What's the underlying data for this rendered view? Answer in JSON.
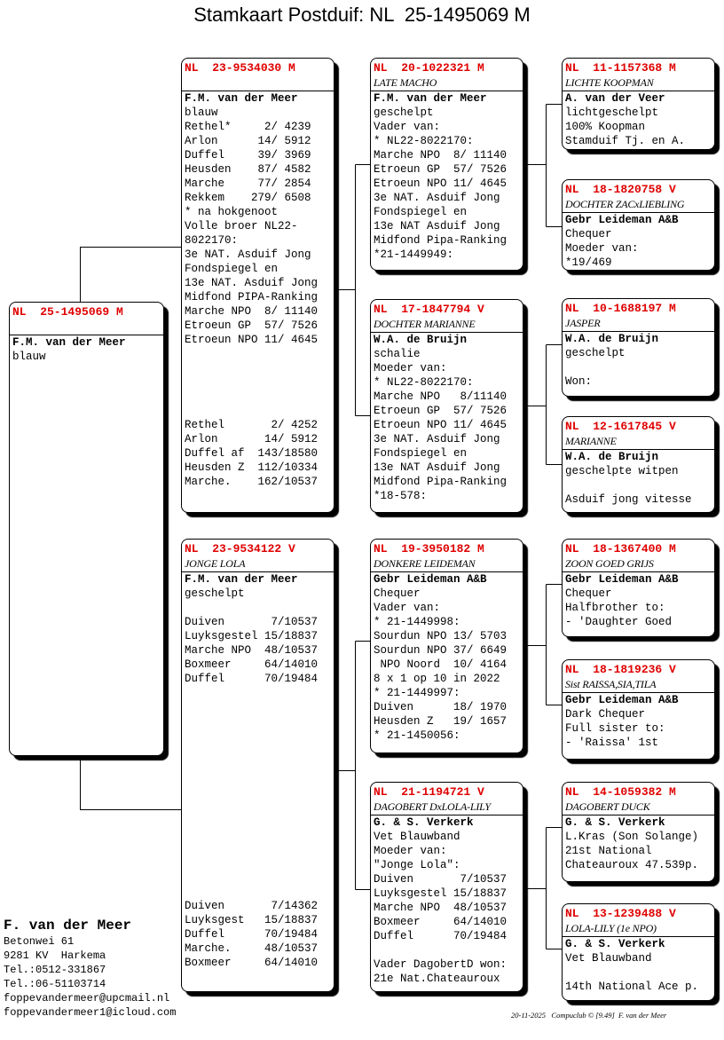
{
  "title": "Stamkaart Postduif: NL  25-1495069 M",
  "pedigree": {
    "subject": {
      "header": "NL  25-1495069 M",
      "name": "",
      "lines": [
        "F.M. van der Meer",
        "blauw"
      ]
    },
    "sire": {
      "header": "NL  23-9534030 M",
      "name": "",
      "lines": [
        "F.M. van der Meer",
        "blauw",
        "Rethel*     2/ 4239",
        "Arlon      14/ 5912",
        "Duffel     39/ 3969",
        "Heusden    87/ 4582",
        "Marche     77/ 2854",
        "Rekkem    279/ 6508",
        "* na hokgenoot",
        "Volle broer NL22-",
        "8022170:",
        "3e NAT. Asduif Jong",
        "Fondspiegel en",
        "13e NAT. Asduif Jong",
        "Midfond PIPA-Ranking",
        "Marche NPO  8/ 11140",
        "Etroeun GP  57/ 7526",
        "Etroeun NPO 11/ 4645",
        "",
        "",
        "",
        "",
        "",
        "Rethel       2/ 4252",
        "Arlon       14/ 5912",
        "Duffel af  143/18580",
        "Heusden Z  112/10334",
        "Marche.    162/10537"
      ]
    },
    "dam": {
      "header": "NL  23-9534122 V",
      "name": "JONGE LOLA",
      "lines": [
        "F.M. van der Meer",
        "geschelpt",
        "",
        "Duiven       7/10537",
        "Luyksgestel 15/18837",
        "Marche NPO  48/10537",
        "Boxmeer     64/14010",
        "Duffel      70/19484",
        "",
        "",
        "",
        "",
        "",
        "",
        "",
        "",
        "",
        "",
        "",
        "",
        "",
        "",
        "",
        "Duiven       7/14362",
        "Luyksgest   15/18837",
        "Duffel      70/19484",
        "Marche.     48/10537",
        "Boxmeer     64/14010"
      ]
    },
    "ss": {
      "header": "NL  20-1022321 M",
      "name": "LATE MACHO",
      "lines": [
        "F.M. van der Meer",
        "geschelpt",
        "Vader van:",
        "* NL22-8022170:",
        "Marche NPO  8/ 11140",
        "Etroeun GP  57/ 7526",
        "Etroeun NPO 11/ 4645",
        "3e NAT. Asduif Jong",
        "Fondspiegel en",
        "13e NAT Asduif Jong",
        "Midfond Pipa-Ranking",
        "*21-1449949:"
      ]
    },
    "sd": {
      "header": "NL  17-1847794 V",
      "name": "DOCHTER MARIANNE",
      "lines": [
        "W.A. de Bruijn",
        "schalie",
        "Moeder van:",
        "* NL22-8022170:",
        "Marche NPO   8/11140",
        "Etroeun GP  57/ 7526",
        "Etroeun NPO 11/ 4645",
        "3e NAT. Asduif Jong",
        "Fondspiegel en",
        "13e NAT Asduif Jong",
        "Midfond Pipa-Ranking",
        "*18-578:"
      ]
    },
    "ds": {
      "header": "NL  19-3950182 M",
      "name": "DONKERE LEIDEMAN",
      "lines": [
        "Gebr Leideman A&B",
        "Chequer",
        "Vader van:",
        "* 21-1449998:",
        "Sourdun NPO 13/ 5703",
        "Sourdun NPO 37/ 6649",
        " NPO Noord  10/ 4164",
        "8 x 1 op 10 in 2022",
        "* 21-1449997:",
        "Duiven      18/ 1970",
        "Heusden Z   19/ 1657",
        "* 21-1450056:"
      ]
    },
    "dd": {
      "header": "NL  21-1194721 V",
      "name": "DAGOBERT DxLOLA-LILY",
      "lines": [
        "G. & S. Verkerk",
        "Vet Blauwband",
        "Moeder van:",
        "\"Jonge Lola\":",
        "Duiven       7/10537",
        "Luyksgestel 15/18837",
        "Marche NPO  48/10537",
        "Boxmeer     64/14010",
        "Duffel      70/19484",
        "",
        "Vader DagobertD won:",
        "21e Nat.Chateauroux"
      ]
    },
    "sss": {
      "header": "NL  11-1157368 M",
      "name": "LICHTE KOOPMAN",
      "lines": [
        "A. van der Veer",
        "lichtgeschelpt",
        "100% Koopman",
        "Stamduif Tj. en A."
      ]
    },
    "ssd": {
      "header": "NL  18-1820758 V",
      "name": "DOCHTER ZACxLIEBLING",
      "lines": [
        "Gebr Leideman A&B",
        "Chequer",
        "Moeder van:",
        "*19/469"
      ]
    },
    "sds": {
      "header": "NL  10-1688197 M",
      "name": "JASPER",
      "lines": [
        "W.A. de Bruijn",
        "geschelpt",
        "",
        "Won:"
      ]
    },
    "sdd": {
      "header": "NL  12-1617845 V",
      "name": "MARIANNE",
      "lines": [
        "W.A. de Bruijn",
        "geschelpte witpen",
        "",
        "Asduif jong vitesse"
      ]
    },
    "dss": {
      "header": "NL  18-1367400 M",
      "name": "ZOON GOED GRIJS",
      "lines": [
        "Gebr Leideman A&B",
        "Chequer",
        "Halfbrother to:",
        "- 'Daughter Goed"
      ]
    },
    "dsd": {
      "header": "NL  18-1819236 V",
      "name": "Sist RAISSA,SIA,TILA",
      "lines": [
        "Gebr Leideman A&B",
        "Dark Chequer",
        "Full sister to:",
        "- 'Raissa' 1st"
      ]
    },
    "dds": {
      "header": "NL  14-1059382 M",
      "name": "DAGOBERT DUCK",
      "lines": [
        "G. & S. Verkerk",
        "L.Kras (Son Solange)",
        "21st National",
        "Chateauroux 47.539p."
      ]
    },
    "ddd": {
      "header": "NL  13-1239488 V",
      "name": "LOLA-LILY (1e NPO)",
      "lines": [
        "G. & S. Verkerk",
        "Vet Blauwband",
        "",
        "14th National Ace p."
      ]
    }
  },
  "contact": {
    "name": "F. van der Meer",
    "lines": [
      "Betonwei 61",
      "9281 KV  Harkema",
      "Tel.:0512-331867",
      "Tel.:06-51103714",
      "foppevandermeer@upcmail.nl",
      "foppevandermeer1@icloud.com"
    ]
  },
  "footer": "20-11-2025   Compuclub © [9.49]  F. van der Meer",
  "colors": {
    "ring_number": "#e00000",
    "text": "#000000",
    "background": "#ffffff"
  }
}
